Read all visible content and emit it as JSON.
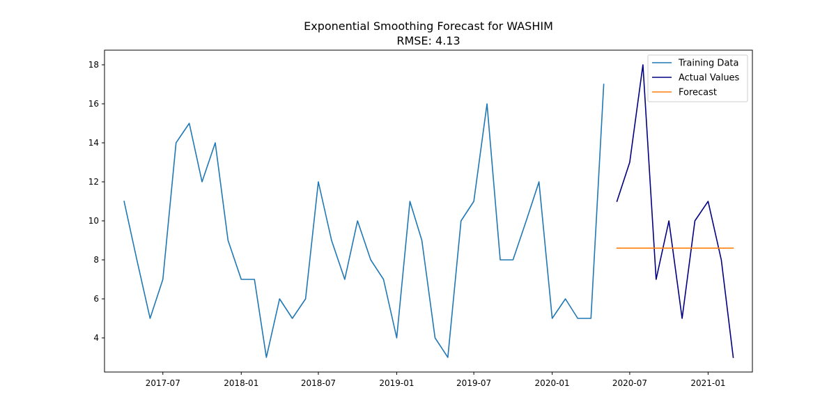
{
  "chart_data": {
    "type": "line",
    "title": "Exponential Smoothing Forecast for WASHIM",
    "subtitle": "RMSE: 4.13",
    "xlabel": "",
    "ylabel": "",
    "xlim": [
      "2017-02-14",
      "2021-04-15"
    ],
    "ylim": [
      2.25,
      18.75
    ],
    "x_ticks": [
      "2017-07-01",
      "2018-01-01",
      "2018-07-01",
      "2019-01-01",
      "2019-07-01",
      "2020-01-01",
      "2020-07-01",
      "2021-01-01"
    ],
    "x_tick_labels": [
      "2017-07",
      "2018-01",
      "2018-07",
      "2019-01",
      "2019-07",
      "2020-01",
      "2020-07",
      "2021-01"
    ],
    "y_ticks": [
      4,
      6,
      8,
      10,
      12,
      14,
      16,
      18
    ],
    "y_tick_labels": [
      "4",
      "6",
      "8",
      "10",
      "12",
      "14",
      "16",
      "18"
    ],
    "grid": false,
    "legend_position": "top-right",
    "series": [
      {
        "name": "Training Data",
        "color": "#1f77b4",
        "x": [
          "2017-04-01",
          "2017-05-01",
          "2017-06-01",
          "2017-07-01",
          "2017-08-01",
          "2017-09-01",
          "2017-10-01",
          "2017-11-01",
          "2017-12-01",
          "2018-01-01",
          "2018-02-01",
          "2018-03-01",
          "2018-04-01",
          "2018-05-01",
          "2018-06-01",
          "2018-07-01",
          "2018-08-01",
          "2018-09-01",
          "2018-10-01",
          "2018-11-01",
          "2018-12-01",
          "2019-01-01",
          "2019-02-01",
          "2019-03-01",
          "2019-04-01",
          "2019-05-01",
          "2019-06-01",
          "2019-07-01",
          "2019-08-01",
          "2019-09-01",
          "2019-10-01",
          "2019-11-01",
          "2019-12-01",
          "2020-01-01",
          "2020-02-01",
          "2020-03-01",
          "2020-04-01",
          "2020-05-01"
        ],
        "values": [
          11,
          8,
          5,
          7,
          14,
          15,
          12,
          14,
          9,
          7,
          7,
          3,
          6,
          5,
          6,
          12,
          9,
          7,
          10,
          8,
          7,
          4,
          11,
          9,
          4,
          3,
          10,
          11,
          16,
          8,
          8,
          10,
          12,
          5,
          6,
          5,
          5,
          17
        ]
      },
      {
        "name": "Actual Values",
        "color": "#000080",
        "x": [
          "2020-06-01",
          "2020-07-01",
          "2020-08-01",
          "2020-09-01",
          "2020-10-01",
          "2020-11-01",
          "2020-12-01",
          "2021-01-01",
          "2021-02-01",
          "2021-03-01"
        ],
        "values": [
          11,
          13,
          18,
          7,
          10,
          5,
          10,
          11,
          8,
          3
        ]
      },
      {
        "name": "Forecast",
        "color": "#ff7f0e",
        "x": [
          "2020-06-01",
          "2020-07-01",
          "2020-08-01",
          "2020-09-01",
          "2020-10-01",
          "2020-11-01",
          "2020-12-01",
          "2021-01-01",
          "2021-02-01",
          "2021-03-01"
        ],
        "values": [
          8.6,
          8.6,
          8.6,
          8.6,
          8.6,
          8.6,
          8.6,
          8.6,
          8.6,
          8.6
        ]
      }
    ]
  }
}
